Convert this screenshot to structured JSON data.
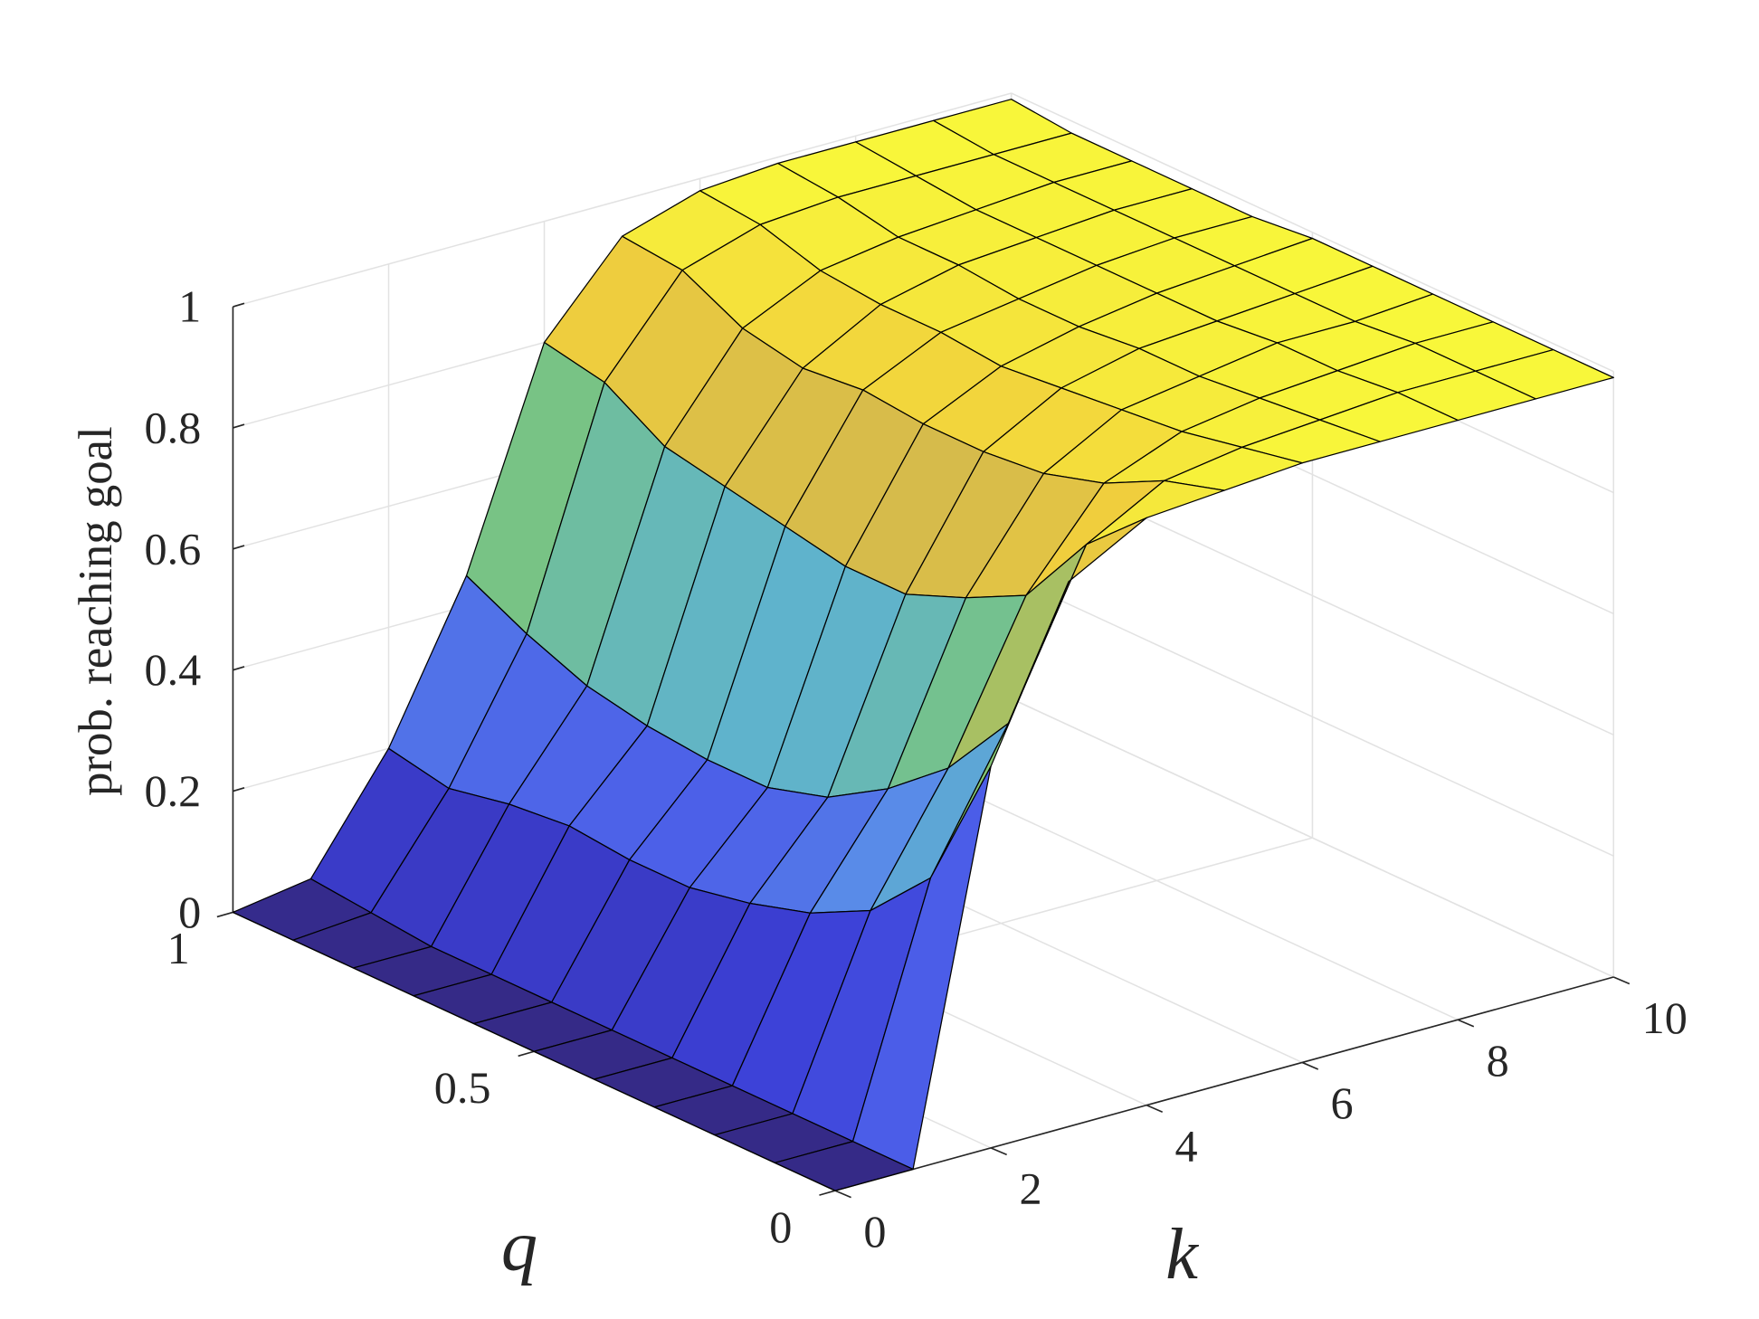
{
  "chart_data": {
    "type": "surface",
    "xlabel": "k",
    "ylabel": "q",
    "zlabel": "prob. reaching goal",
    "x": [
      0,
      1,
      2,
      3,
      4,
      5,
      6,
      7,
      8,
      9,
      10
    ],
    "y": [
      0,
      0.1,
      0.2,
      0.3,
      0.4,
      0.5,
      0.6,
      0.7,
      0.8,
      0.9,
      1
    ],
    "z": [
      [
        0,
        0,
        0.63,
        0.9,
        0.97,
        0.98,
        0.99,
        0.99,
        0.99,
        0.99,
        0.99
      ],
      [
        0,
        0,
        0.4,
        0.62,
        0.88,
        0.95,
        0.97,
        0.98,
        0.99,
        0.99,
        0.99
      ],
      [
        0,
        0,
        0.3,
        0.5,
        0.75,
        0.9,
        0.95,
        0.97,
        0.98,
        0.99,
        0.99
      ],
      [
        0,
        0,
        0.25,
        0.42,
        0.7,
        0.87,
        0.94,
        0.96,
        0.98,
        0.98,
        0.99
      ],
      [
        0,
        0,
        0.22,
        0.36,
        0.66,
        0.86,
        0.93,
        0.96,
        0.97,
        0.98,
        0.99
      ],
      [
        0,
        0,
        0.2,
        0.33,
        0.66,
        0.86,
        0.92,
        0.95,
        0.97,
        0.98,
        0.99
      ],
      [
        0,
        0,
        0.2,
        0.33,
        0.68,
        0.87,
        0.93,
        0.95,
        0.97,
        0.98,
        0.98
      ],
      [
        0,
        0,
        0.21,
        0.34,
        0.7,
        0.86,
        0.93,
        0.96,
        0.97,
        0.98,
        0.98
      ],
      [
        0,
        0,
        0.2,
        0.36,
        0.72,
        0.88,
        0.94,
        0.96,
        0.97,
        0.98,
        0.98
      ],
      [
        0,
        0.01,
        0.18,
        0.4,
        0.78,
        0.93,
        0.97,
        0.98,
        0.98,
        0.98,
        0.98
      ],
      [
        0,
        0.02,
        0.2,
        0.45,
        0.8,
        0.94,
        0.98,
        0.99,
        0.99,
        0.99,
        0.99
      ]
    ],
    "xlim": [
      0,
      10
    ],
    "ylim": [
      0,
      1
    ],
    "zlim": [
      0,
      1
    ],
    "xticks": [
      0,
      2,
      4,
      6,
      8,
      10
    ],
    "yticks": [
      0,
      0.5,
      1
    ],
    "zticks": [
      0,
      0.2,
      0.4,
      0.6,
      0.8,
      1
    ],
    "grid": true,
    "colormap": [
      "#352a87",
      "#3b3fd6",
      "#4a5ae8",
      "#5a8ee8",
      "#5fb3cc",
      "#7cc67a",
      "#d4b94c",
      "#f1cf3c",
      "#f9fb3a"
    ],
    "edgecolor": "#000000"
  }
}
